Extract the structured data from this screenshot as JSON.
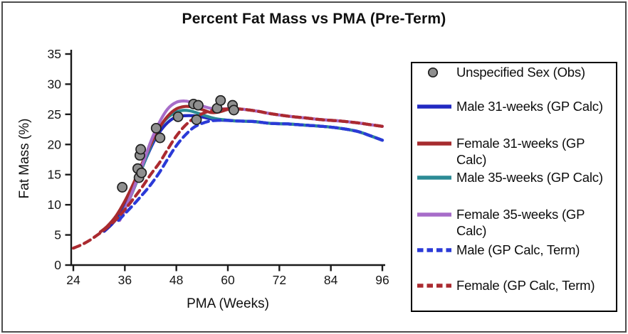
{
  "chart_data": {
    "type": "line",
    "title": "Percent Fat Mass vs PMA (Pre-Term)",
    "xlabel": "PMA (Weeks)",
    "ylabel": "Fat Mass (%)",
    "xlim": [
      24,
      96
    ],
    "ylim": [
      0,
      35
    ],
    "x_ticks": [
      24,
      36,
      48,
      60,
      72,
      84,
      96
    ],
    "y_ticks": [
      0,
      5,
      10,
      15,
      20,
      25,
      30,
      35
    ],
    "grid": false,
    "legend_position": "right-box",
    "axis_color": "#1a1a1a",
    "scatter": {
      "name": "Unspecified Sex (Obs)",
      "marker": "circle",
      "fill": "#8f8f8f",
      "edge": "#1f1f1f",
      "points": [
        [
          35.4,
          12.9
        ],
        [
          39.0,
          16.0
        ],
        [
          39.3,
          14.5
        ],
        [
          39.5,
          18.2
        ],
        [
          39.7,
          19.2
        ],
        [
          39.9,
          15.3
        ],
        [
          43.3,
          22.7
        ],
        [
          44.2,
          21.1
        ],
        [
          48.4,
          24.6
        ],
        [
          52.0,
          26.7
        ],
        [
          52.7,
          24.1
        ],
        [
          53.1,
          26.5
        ],
        [
          57.5,
          26.0
        ],
        [
          58.3,
          27.3
        ],
        [
          61.1,
          26.5
        ],
        [
          61.4,
          25.7
        ]
      ]
    },
    "series": [
      {
        "name": "Male 31-weeks (GP Calc)",
        "color": "#2129c2",
        "dash": false,
        "points": [
          [
            31.2,
            5.6
          ],
          [
            33,
            6.8
          ],
          [
            35,
            8.6
          ],
          [
            37,
            11.2
          ],
          [
            39,
            14.4
          ],
          [
            41,
            17.8
          ],
          [
            43,
            20.8
          ],
          [
            45,
            22.9
          ],
          [
            47,
            24.2
          ],
          [
            49,
            24.7
          ],
          [
            51,
            24.8
          ],
          [
            53,
            24.7
          ],
          [
            55,
            24.4
          ],
          [
            57,
            24.1
          ],
          [
            59,
            24.0
          ],
          [
            62,
            23.9
          ],
          [
            66,
            23.8
          ],
          [
            70,
            23.5
          ],
          [
            74,
            23.4
          ],
          [
            78,
            23.2
          ],
          [
            82,
            23.0
          ],
          [
            86,
            22.7
          ],
          [
            90,
            22.2
          ],
          [
            93,
            21.5
          ],
          [
            96,
            20.7
          ]
        ]
      },
      {
        "name": "Female 31-weeks (GP Calc)",
        "color": "#a62b2e",
        "dash": false,
        "points": [
          [
            30.3,
            5.5
          ],
          [
            32,
            6.5
          ],
          [
            34,
            8.2
          ],
          [
            36,
            10.6
          ],
          [
            38,
            13.5
          ],
          [
            40,
            16.8
          ],
          [
            42,
            20.0
          ],
          [
            44,
            22.7
          ],
          [
            46,
            24.7
          ],
          [
            48,
            25.9
          ],
          [
            50,
            26.3
          ],
          [
            52,
            26.2
          ],
          [
            54,
            25.8
          ],
          [
            56,
            25.3
          ],
          [
            58,
            25.4
          ],
          [
            60,
            25.8
          ],
          [
            62,
            25.9
          ],
          [
            64,
            25.8
          ],
          [
            67,
            25.5
          ],
          [
            70,
            25.1
          ],
          [
            74,
            24.7
          ],
          [
            78,
            24.4
          ],
          [
            82,
            24.1
          ],
          [
            86,
            23.9
          ],
          [
            90,
            23.6
          ],
          [
            93,
            23.3
          ],
          [
            96,
            23.0
          ]
        ]
      },
      {
        "name": "Male 35-weeks (GP Calc)",
        "color": "#2c8b95",
        "dash": false,
        "points": [
          [
            35,
            8.0
          ],
          [
            37,
            10.8
          ],
          [
            39,
            14.2
          ],
          [
            41,
            17.9
          ],
          [
            43,
            21.3
          ],
          [
            45,
            23.7
          ],
          [
            47,
            25.0
          ],
          [
            49,
            25.6
          ],
          [
            51,
            25.6
          ],
          [
            53,
            25.2
          ],
          [
            55,
            24.7
          ],
          [
            57,
            24.3
          ],
          [
            59,
            24.1
          ],
          [
            62,
            23.9
          ],
          [
            66,
            23.8
          ],
          [
            70,
            23.5
          ],
          [
            74,
            23.4
          ],
          [
            78,
            23.2
          ],
          [
            82,
            23.0
          ],
          [
            86,
            22.7
          ],
          [
            90,
            22.2
          ],
          [
            93,
            21.5
          ],
          [
            96,
            20.7
          ]
        ]
      },
      {
        "name": "Female 35-weeks (GP Calc)",
        "color": "#a76cc9",
        "dash": false,
        "points": [
          [
            34.8,
            7.4
          ],
          [
            36,
            9.2
          ],
          [
            38,
            12.6
          ],
          [
            40,
            16.4
          ],
          [
            42,
            20.4
          ],
          [
            44,
            23.6
          ],
          [
            46,
            25.9
          ],
          [
            48,
            27.0
          ],
          [
            50,
            27.2
          ],
          [
            52,
            26.9
          ],
          [
            54,
            26.4
          ],
          [
            56,
            26.0
          ],
          [
            58,
            25.9
          ],
          [
            60,
            25.9
          ],
          [
            62,
            25.9
          ],
          [
            64,
            25.8
          ],
          [
            67,
            25.5
          ],
          [
            70,
            25.1
          ],
          [
            74,
            24.7
          ],
          [
            78,
            24.4
          ],
          [
            82,
            24.1
          ],
          [
            86,
            23.9
          ],
          [
            90,
            23.6
          ],
          [
            93,
            23.3
          ],
          [
            96,
            23.0
          ]
        ]
      },
      {
        "name": "Male (GP Calc, Term)",
        "color": "#2b3ad7",
        "dash": true,
        "points": [
          [
            34.5,
            7.4
          ],
          [
            36,
            8.5
          ],
          [
            38,
            10.0
          ],
          [
            40,
            11.6
          ],
          [
            42,
            13.3
          ],
          [
            44,
            15.3
          ],
          [
            46,
            17.6
          ],
          [
            48,
            19.8
          ],
          [
            50,
            21.5
          ],
          [
            52,
            22.8
          ],
          [
            54,
            23.5
          ],
          [
            56,
            23.9
          ],
          [
            58,
            24.0
          ],
          [
            60,
            24.0
          ],
          [
            62,
            23.9
          ],
          [
            66,
            23.8
          ],
          [
            70,
            23.5
          ],
          [
            74,
            23.4
          ],
          [
            78,
            23.2
          ],
          [
            82,
            23.0
          ],
          [
            86,
            22.7
          ],
          [
            90,
            22.2
          ],
          [
            93,
            21.5
          ],
          [
            96,
            20.7
          ]
        ]
      },
      {
        "name": "Female (GP Calc, Term)",
        "color": "#ab2a30",
        "dash": true,
        "points": [
          [
            24,
            2.8
          ],
          [
            26,
            3.4
          ],
          [
            28,
            4.2
          ],
          [
            30,
            5.2
          ],
          [
            32,
            6.3
          ],
          [
            34,
            7.6
          ],
          [
            36,
            9.2
          ],
          [
            38,
            11.0
          ],
          [
            40,
            12.9
          ],
          [
            42,
            15.0
          ],
          [
            44,
            16.9
          ],
          [
            46,
            19.2
          ],
          [
            48,
            21.4
          ],
          [
            50,
            23.1
          ],
          [
            52,
            24.3
          ],
          [
            54,
            25.1
          ],
          [
            56,
            25.6
          ],
          [
            58,
            25.8
          ],
          [
            60,
            25.9
          ],
          [
            62,
            25.9
          ],
          [
            64,
            25.8
          ],
          [
            67,
            25.5
          ],
          [
            70,
            25.1
          ],
          [
            74,
            24.7
          ],
          [
            78,
            24.4
          ],
          [
            82,
            24.1
          ],
          [
            86,
            23.9
          ],
          [
            90,
            23.6
          ],
          [
            93,
            23.3
          ],
          [
            96,
            23.0
          ]
        ]
      }
    ]
  }
}
